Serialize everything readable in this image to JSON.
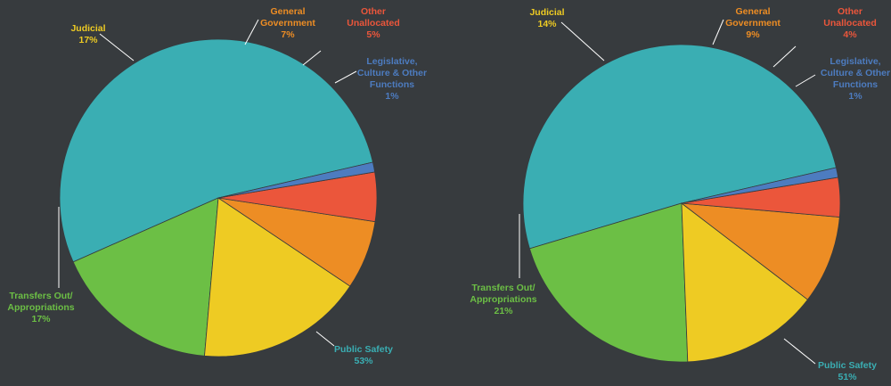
{
  "colors": {
    "public_safety": "#3aaeb3",
    "transfers_out": "#6cbf45",
    "judicial": "#eecb23",
    "general_government": "#ed8d24",
    "other_unallocated": "#eb563b",
    "legislative": "#4d7cc0"
  },
  "chart_data": [
    {
      "type": "pie",
      "title": "",
      "start_angle_deg": 13,
      "direction": "counterclockwise",
      "slices": [
        {
          "key": "public_safety",
          "lines": [
            "Public Safety",
            "53%"
          ],
          "value": 53,
          "color": "#3aaeb3"
        },
        {
          "key": "transfers_out",
          "lines": [
            "Transfers Out/",
            "Appropriations",
            "17%"
          ],
          "value": 17,
          "color": "#6cbf45"
        },
        {
          "key": "judicial",
          "lines": [
            "Judicial",
            "17%"
          ],
          "value": 17,
          "color": "#eecb23"
        },
        {
          "key": "general_government",
          "lines": [
            "General",
            "Government",
            "7%"
          ],
          "value": 7,
          "color": "#ed8d24"
        },
        {
          "key": "other_unallocated",
          "lines": [
            "Other",
            "Unallocated",
            "5%"
          ],
          "value": 5,
          "color": "#eb563b"
        },
        {
          "key": "legislative",
          "lines": [
            "Legislative,",
            "Culture & Other",
            "Functions",
            "1%"
          ],
          "value": 1,
          "color": "#4d7cc0"
        }
      ]
    },
    {
      "type": "pie",
      "title": "",
      "start_angle_deg": 13,
      "direction": "counterclockwise",
      "slices": [
        {
          "key": "public_safety",
          "lines": [
            "Public Safety",
            "51%"
          ],
          "value": 51,
          "color": "#3aaeb3"
        },
        {
          "key": "transfers_out",
          "lines": [
            "Transfers Out/",
            "Appropriations",
            "21%"
          ],
          "value": 21,
          "color": "#6cbf45"
        },
        {
          "key": "judicial",
          "lines": [
            "Judicial",
            "14%"
          ],
          "value": 14,
          "color": "#eecb23"
        },
        {
          "key": "general_government",
          "lines": [
            "General",
            "Government",
            "9%"
          ],
          "value": 9,
          "color": "#ed8d24"
        },
        {
          "key": "other_unallocated",
          "lines": [
            "Other",
            "Unallocated",
            "4%"
          ],
          "value": 4,
          "color": "#eb563b"
        },
        {
          "key": "legislative",
          "lines": [
            "Legislative,",
            "Culture & Other",
            "Functions",
            "1%"
          ],
          "value": 1,
          "color": "#4d7cc0"
        }
      ]
    }
  ]
}
